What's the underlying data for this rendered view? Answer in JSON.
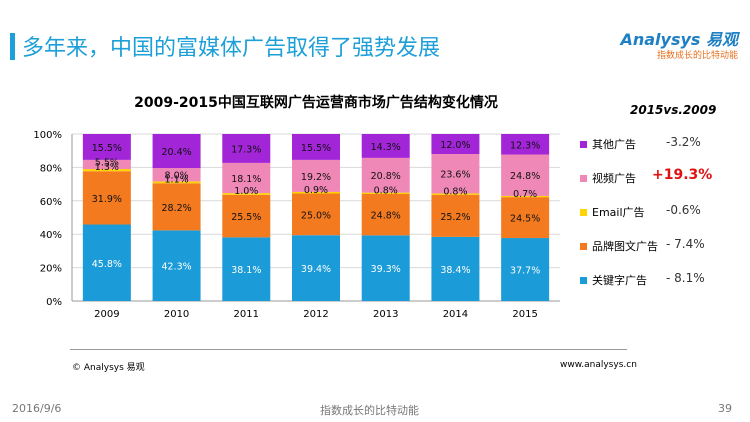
{
  "slide": {
    "title": "多年来，中国的富媒体广告取得了强势发展",
    "logo_text": "Analysys 易观",
    "logo_tagline": "指数成长的比特动能",
    "comparison_header": "2015vs.2009"
  },
  "chart_data": {
    "type": "bar",
    "stacked": true,
    "title": "2009-2015中国互联网广告运营商市场广告结构变化情况",
    "categories": [
      "2009",
      "2010",
      "2011",
      "2012",
      "2013",
      "2014",
      "2015"
    ],
    "yticks": [
      "0%",
      "20%",
      "40%",
      "60%",
      "80%",
      "100%"
    ],
    "ylim": [
      0,
      100
    ],
    "series": [
      {
        "name": "关键字广告",
        "color": "#1b9bd7",
        "values": [
          45.8,
          42.3,
          38.1,
          39.4,
          39.3,
          38.4,
          37.7
        ],
        "labels": [
          "45.8%",
          "42.3%",
          "38.1%",
          "39.4%",
          "39.3%",
          "38.4%",
          "37.7%"
        ],
        "change": "- 8.1%"
      },
      {
        "name": "品牌图文广告",
        "color": "#f47a20",
        "values": [
          31.9,
          28.2,
          25.5,
          25.0,
          24.8,
          25.2,
          24.5
        ],
        "labels": [
          "31.9%",
          "28.2%",
          "25.5%",
          "25.0%",
          "24.8%",
          "25.2%",
          "24.5%"
        ],
        "change": "- 7.4%"
      },
      {
        "name": "Email广告",
        "color": "#ffd400",
        "values": [
          1.3,
          1.1,
          1.0,
          0.9,
          0.8,
          0.8,
          0.7
        ],
        "labels": [
          "1.3%",
          "1.1%",
          "1.0%",
          "0.9%",
          "0.8%",
          "0.8%",
          "0.7%"
        ],
        "change": "-0.6%"
      },
      {
        "name": "视频广告",
        "color": "#ef88b6",
        "values": [
          5.5,
          8.0,
          18.1,
          19.2,
          20.8,
          23.6,
          24.8
        ],
        "labels": [
          "5.5%",
          "8.0%",
          "18.1%",
          "19.2%",
          "20.8%",
          "23.6%",
          "24.8%"
        ],
        "change": "+19.3%"
      },
      {
        "name": "其他广告",
        "color": "#a225d8",
        "values": [
          15.5,
          20.4,
          17.3,
          15.5,
          14.3,
          12.0,
          12.3
        ],
        "labels": [
          "15.5%",
          "20.4%",
          "17.3%",
          "15.5%",
          "14.3%",
          "12.0%",
          "12.3%"
        ],
        "change": "-3.2%"
      }
    ],
    "legend": {
      "placement": "right",
      "order": [
        4,
        3,
        2,
        1,
        0
      ],
      "highlight_series": 3,
      "highlight_color": "#e11111"
    }
  },
  "footer": {
    "copyright": "© Analysys 易观",
    "website": "www.analysys.cn",
    "date": "2016/9/6",
    "slogan": "指数成长的比特动能",
    "page": "39"
  }
}
